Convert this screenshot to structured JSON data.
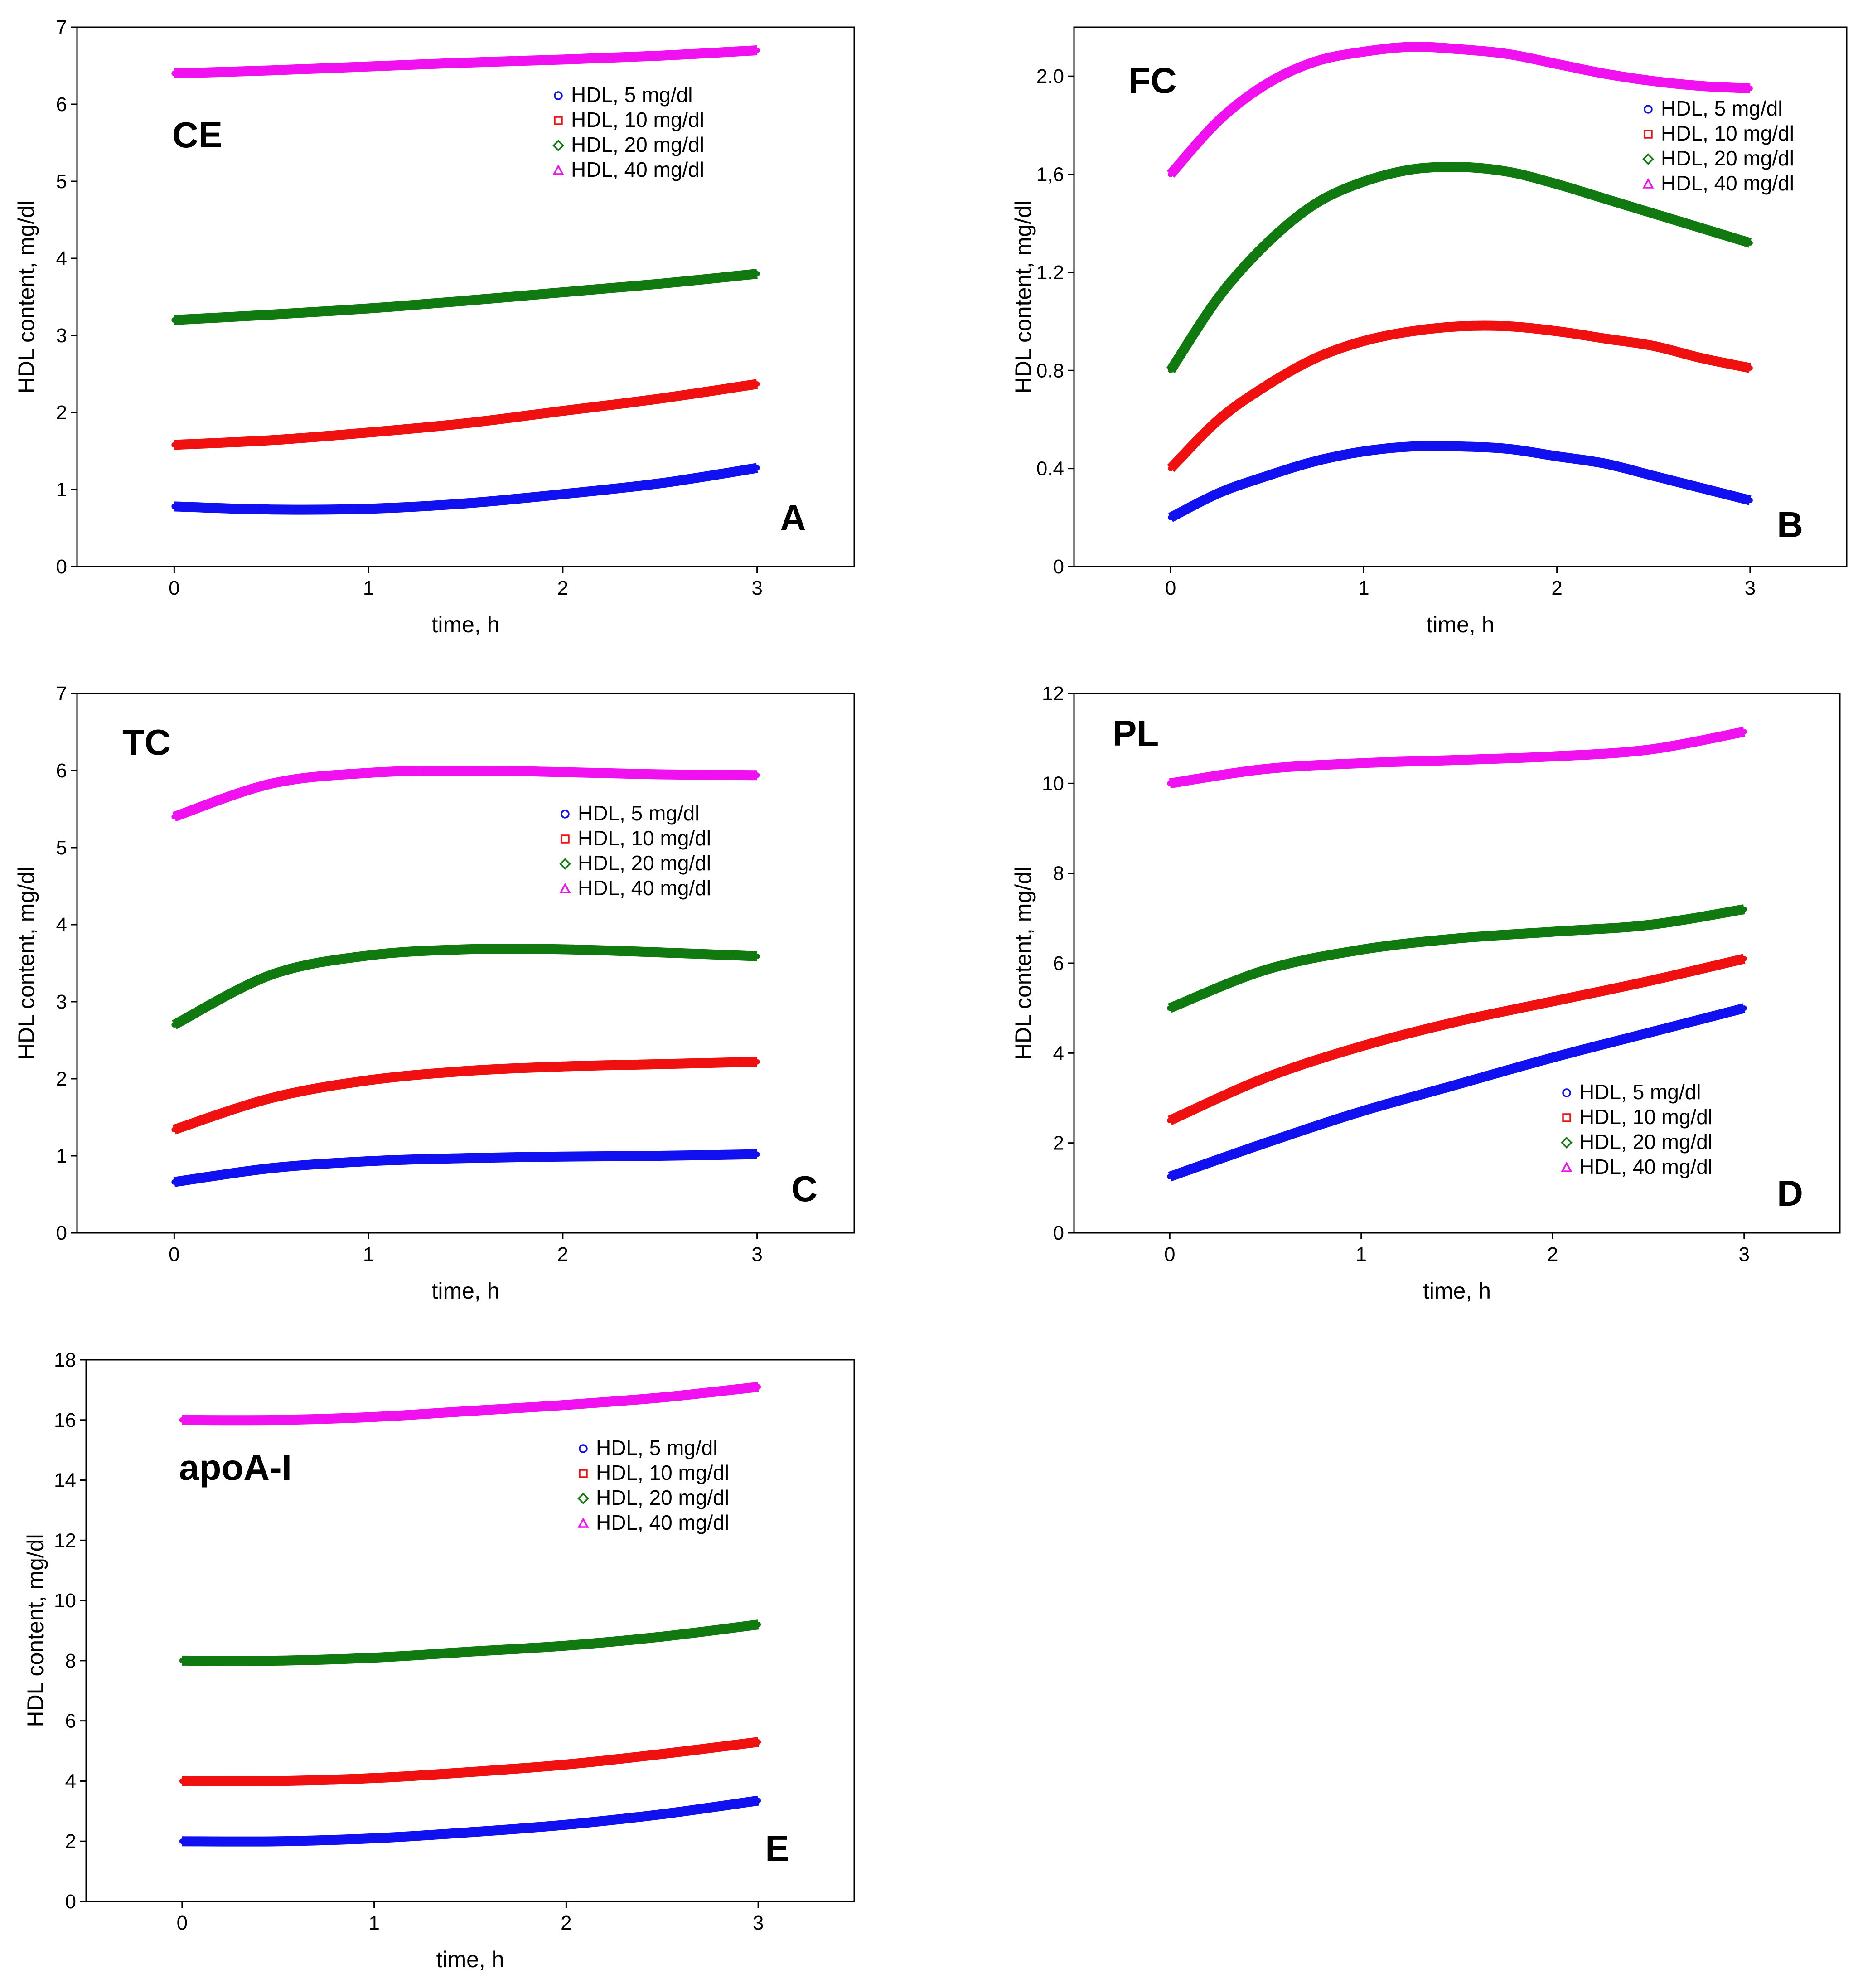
{
  "colors": {
    "blue": "#1010f0",
    "red": "#f01010",
    "green": "#107a10",
    "magenta": "#f010f0"
  },
  "chart_data": [
    {
      "id": "A",
      "type": "line",
      "title": "CE",
      "panel_letter": "A",
      "xlabel": "time, h",
      "ylabel": "HDL content, mg/dl",
      "xlim": [
        -0.5,
        3.5
      ],
      "ylim": [
        0,
        7
      ],
      "xticks": [
        "0",
        "1",
        "2",
        "3"
      ],
      "xtick_values": [
        0,
        1,
        2,
        3
      ],
      "yticks": [
        "0",
        "1",
        "2",
        "3",
        "4",
        "5",
        "6",
        "7"
      ],
      "ytick_values": [
        0,
        1,
        2,
        3,
        4,
        5,
        6,
        7
      ],
      "legend_position": "top-right",
      "legend": [
        "HDL, 5 mg/dl",
        "HDL, 10 mg/dl",
        "HDL, 20 mg/dl",
        "HDL, 40 mg/dl"
      ],
      "x": [
        0,
        0.5,
        1,
        1.5,
        2,
        2.5,
        3
      ],
      "series": [
        {
          "name": "HDL, 5 mg/dl",
          "color": "#1010f0",
          "marker": "circle",
          "values": [
            0.78,
            0.74,
            0.75,
            0.82,
            0.94,
            1.08,
            1.28
          ]
        },
        {
          "name": "HDL, 10 mg/dl",
          "color": "#f01010",
          "marker": "square",
          "values": [
            1.58,
            1.64,
            1.74,
            1.86,
            2.02,
            2.18,
            2.37
          ]
        },
        {
          "name": "HDL, 20 mg/dl",
          "color": "#107a10",
          "marker": "diamond",
          "values": [
            3.2,
            3.27,
            3.35,
            3.45,
            3.56,
            3.67,
            3.8
          ]
        },
        {
          "name": "HDL, 40 mg/dl",
          "color": "#f010f0",
          "marker": "triangle",
          "values": [
            6.4,
            6.44,
            6.49,
            6.54,
            6.58,
            6.63,
            6.7
          ]
        }
      ]
    },
    {
      "id": "B",
      "type": "line",
      "title": "FC",
      "panel_letter": "B",
      "xlabel": "time, h",
      "ylabel": "HDL content, mg/dl",
      "xlim": [
        -0.5,
        3.5
      ],
      "ylim": [
        0,
        2.2
      ],
      "xticks": [
        "0",
        "1",
        "2",
        "3"
      ],
      "xtick_values": [
        0,
        1,
        2,
        3
      ],
      "yticks": [
        "0",
        "0.4",
        "0.8",
        "1.2",
        "1,6",
        "2.0"
      ],
      "ytick_values": [
        0,
        0.4,
        0.8,
        1.2,
        1.6,
        2.0
      ],
      "legend_position": "top-right",
      "legend": [
        "HDL, 5 mg/dl",
        "HDL, 10 mg/dl",
        "HDL, 20 mg/dl",
        "HDL, 40 mg/dl"
      ],
      "x": [
        0,
        0.25,
        0.5,
        0.75,
        1,
        1.25,
        1.5,
        1.75,
        2,
        2.25,
        2.5,
        2.75,
        3
      ],
      "series": [
        {
          "name": "HDL, 5 mg/dl",
          "color": "#1010f0",
          "marker": "circle",
          "values": [
            0.2,
            0.3,
            0.37,
            0.43,
            0.47,
            0.49,
            0.49,
            0.48,
            0.45,
            0.42,
            0.37,
            0.32,
            0.27
          ]
        },
        {
          "name": "HDL, 10 mg/dl",
          "color": "#f01010",
          "marker": "square",
          "values": [
            0.4,
            0.6,
            0.74,
            0.85,
            0.92,
            0.96,
            0.98,
            0.98,
            0.96,
            0.93,
            0.9,
            0.85,
            0.81
          ]
        },
        {
          "name": "HDL, 20 mg/dl",
          "color": "#107a10",
          "marker": "diamond",
          "values": [
            0.8,
            1.1,
            1.32,
            1.48,
            1.57,
            1.62,
            1.63,
            1.61,
            1.56,
            1.5,
            1.44,
            1.38,
            1.32
          ]
        },
        {
          "name": "HDL, 40 mg/dl",
          "color": "#f010f0",
          "marker": "triangle",
          "values": [
            1.6,
            1.82,
            1.97,
            2.06,
            2.1,
            2.12,
            2.11,
            2.09,
            2.05,
            2.01,
            1.98,
            1.96,
            1.95
          ]
        }
      ]
    },
    {
      "id": "C",
      "type": "line",
      "title": "TC",
      "panel_letter": "C",
      "xlabel": "time, h",
      "ylabel": "HDL content, mg/dl",
      "xlim": [
        -0.5,
        3.5
      ],
      "ylim": [
        0,
        7
      ],
      "xticks": [
        "0",
        "1",
        "2",
        "3"
      ],
      "xtick_values": [
        0,
        1,
        2,
        3
      ],
      "yticks": [
        "0",
        "1",
        "2",
        "3",
        "4",
        "5",
        "6",
        "7"
      ],
      "ytick_values": [
        0,
        1,
        2,
        3,
        4,
        5,
        6,
        7
      ],
      "legend_position": "top-right",
      "legend": [
        "HDL, 5 mg/dl",
        "HDL, 10 mg/dl",
        "HDL, 20 mg/dl",
        "HDL, 40 mg/dl"
      ],
      "x": [
        0,
        0.5,
        1,
        1.5,
        2,
        2.5,
        3
      ],
      "series": [
        {
          "name": "HDL, 5 mg/dl",
          "color": "#1010f0",
          "marker": "circle",
          "values": [
            0.66,
            0.84,
            0.93,
            0.97,
            0.99,
            1.0,
            1.02
          ]
        },
        {
          "name": "HDL, 10 mg/dl",
          "color": "#f01010",
          "marker": "square",
          "values": [
            1.34,
            1.75,
            1.98,
            2.1,
            2.16,
            2.19,
            2.22
          ]
        },
        {
          "name": "HDL, 20 mg/dl",
          "color": "#107a10",
          "marker": "diamond",
          "values": [
            2.7,
            3.35,
            3.6,
            3.68,
            3.68,
            3.64,
            3.59
          ]
        },
        {
          "name": "HDL, 40 mg/dl",
          "color": "#f010f0",
          "marker": "triangle",
          "values": [
            5.4,
            5.83,
            5.97,
            6.0,
            5.98,
            5.95,
            5.94
          ]
        }
      ]
    },
    {
      "id": "D",
      "type": "line",
      "title": "PL",
      "panel_letter": "D",
      "xlabel": "time, h",
      "ylabel": "HDL content, mg/dl",
      "xlim": [
        -0.5,
        3.5
      ],
      "ylim": [
        0,
        12
      ],
      "xticks": [
        "0",
        "1",
        "2",
        "3"
      ],
      "xtick_values": [
        0,
        1,
        2,
        3
      ],
      "yticks": [
        "0",
        "2",
        "4",
        "6",
        "8",
        "10",
        "12"
      ],
      "ytick_values": [
        0,
        2,
        4,
        6,
        8,
        10,
        12
      ],
      "legend_position": "bottom-right",
      "legend": [
        "HDL, 5 mg/dl",
        "HDL, 10 mg/dl",
        "HDL, 20 mg/dl",
        "HDL, 40 mg/dl"
      ],
      "x": [
        0,
        0.5,
        1,
        1.5,
        2,
        2.5,
        3
      ],
      "series": [
        {
          "name": "HDL, 5 mg/dl",
          "color": "#1010f0",
          "marker": "circle",
          "values": [
            1.25,
            2.0,
            2.7,
            3.3,
            3.9,
            4.45,
            5.0
          ]
        },
        {
          "name": "HDL, 10 mg/dl",
          "color": "#f01010",
          "marker": "square",
          "values": [
            2.5,
            3.45,
            4.15,
            4.7,
            5.15,
            5.6,
            6.1
          ]
        },
        {
          "name": "HDL, 20 mg/dl",
          "color": "#107a10",
          "marker": "diamond",
          "values": [
            5.0,
            5.85,
            6.3,
            6.55,
            6.7,
            6.85,
            7.2
          ]
        },
        {
          "name": "HDL, 40 mg/dl",
          "color": "#f010f0",
          "marker": "triangle",
          "values": [
            10.0,
            10.32,
            10.45,
            10.52,
            10.6,
            10.75,
            11.15
          ]
        }
      ]
    },
    {
      "id": "E",
      "type": "line",
      "title": "apoA-I",
      "panel_letter": "E",
      "xlabel": "time, h",
      "ylabel": "HDL content, mg/dl",
      "xlim": [
        -0.5,
        3.5
      ],
      "ylim": [
        0,
        18
      ],
      "xticks": [
        "0",
        "1",
        "2",
        "3"
      ],
      "xtick_values": [
        0,
        1,
        2,
        3
      ],
      "yticks": [
        "0",
        "2",
        "4",
        "6",
        "8",
        "10",
        "12",
        "14",
        "16",
        "18"
      ],
      "ytick_values": [
        0,
        2,
        4,
        6,
        8,
        10,
        12,
        14,
        16,
        18
      ],
      "legend_position": "top-right",
      "legend": [
        "HDL, 5 mg/dl",
        "HDL, 10 mg/dl",
        "HDL, 20 mg/dl",
        "HDL, 40 mg/dl"
      ],
      "x": [
        0,
        0.5,
        1,
        1.5,
        2,
        2.5,
        3
      ],
      "series": [
        {
          "name": "HDL, 5 mg/dl",
          "color": "#1010f0",
          "marker": "circle",
          "values": [
            2.0,
            2.0,
            2.1,
            2.3,
            2.55,
            2.9,
            3.35
          ]
        },
        {
          "name": "HDL, 10 mg/dl",
          "color": "#f01010",
          "marker": "square",
          "values": [
            4.0,
            4.0,
            4.1,
            4.3,
            4.55,
            4.9,
            5.3
          ]
        },
        {
          "name": "HDL, 20 mg/dl",
          "color": "#107a10",
          "marker": "diamond",
          "values": [
            8.0,
            8.0,
            8.1,
            8.3,
            8.5,
            8.8,
            9.2
          ]
        },
        {
          "name": "HDL, 40 mg/dl",
          "color": "#f010f0",
          "marker": "triangle",
          "values": [
            16.0,
            16.0,
            16.1,
            16.3,
            16.5,
            16.75,
            17.1
          ]
        }
      ]
    }
  ]
}
